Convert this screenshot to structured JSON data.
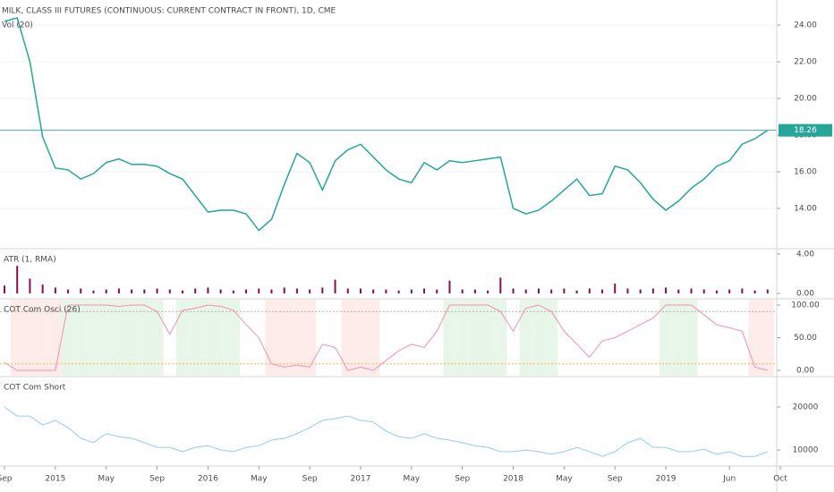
{
  "chart_data": [
    {
      "type": "line",
      "title": "MILK, CLASS III FUTURES (CONTINUOUS: CURRENT CONTRACT IN FRONT), 1D, CME",
      "subtitle": "Vol (20)",
      "x": [
        "2014-09",
        "2014-10",
        "2014-11",
        "2014-12",
        "2015-01",
        "2015-02",
        "2015-03",
        "2015-04",
        "2015-05",
        "2015-06",
        "2015-07",
        "2015-08",
        "2015-09",
        "2015-10",
        "2015-11",
        "2015-12",
        "2016-01",
        "2016-02",
        "2016-03",
        "2016-04",
        "2016-05",
        "2016-06",
        "2016-07",
        "2016-08",
        "2016-09",
        "2016-10",
        "2016-11",
        "2016-12",
        "2017-01",
        "2017-02",
        "2017-03",
        "2017-04",
        "2017-05",
        "2017-06",
        "2017-07",
        "2017-08",
        "2017-09",
        "2017-10",
        "2017-11",
        "2017-12",
        "2018-01",
        "2018-02",
        "2018-03",
        "2018-04",
        "2018-05",
        "2018-06",
        "2018-07",
        "2018-08",
        "2018-09",
        "2018-10",
        "2018-11",
        "2018-12",
        "2019-01",
        "2019-02",
        "2019-03",
        "2019-04",
        "2019-05",
        "2019-06",
        "2019-07",
        "2019-08",
        "2019-09"
      ],
      "xlim": [
        "2014-09",
        "2019-10"
      ],
      "xticks": [
        {
          "value": "2014-09",
          "label": "Sep"
        },
        {
          "value": "2015-01",
          "label": "2015"
        },
        {
          "value": "2015-05",
          "label": "May"
        },
        {
          "value": "2015-09",
          "label": "Sep"
        },
        {
          "value": "2016-01",
          "label": "2016"
        },
        {
          "value": "2016-05",
          "label": "May"
        },
        {
          "value": "2016-09",
          "label": "Sep"
        },
        {
          "value": "2017-01",
          "label": "2017"
        },
        {
          "value": "2017-05",
          "label": "May"
        },
        {
          "value": "2017-09",
          "label": "Sep"
        },
        {
          "value": "2018-01",
          "label": "2018"
        },
        {
          "value": "2018-05",
          "label": "May"
        },
        {
          "value": "2018-09",
          "label": "Sep"
        },
        {
          "value": "2019-01",
          "label": "2019"
        },
        {
          "value": "2019-06",
          "label": "Jun"
        },
        {
          "value": "2019-10",
          "label": "Oct"
        }
      ],
      "series": [
        {
          "name": "MILK",
          "color": "#26a69a",
          "values": [
            24.2,
            24.4,
            22.0,
            17.9,
            16.2,
            16.1,
            15.6,
            15.9,
            16.5,
            16.7,
            16.4,
            16.4,
            16.3,
            15.9,
            15.6,
            14.7,
            13.8,
            13.9,
            13.9,
            13.7,
            12.8,
            13.4,
            15.3,
            17.0,
            16.5,
            15.0,
            16.6,
            17.2,
            17.5,
            16.8,
            16.1,
            15.6,
            15.4,
            16.5,
            16.1,
            16.6,
            16.5,
            16.6,
            16.7,
            16.8,
            14.0,
            13.7,
            13.9,
            14.4,
            15.0,
            15.6,
            14.7,
            14.8,
            16.3,
            16.1,
            15.4,
            14.5,
            13.9,
            14.4,
            15.1,
            15.6,
            16.3,
            16.6,
            17.5,
            17.8,
            18.26
          ]
        }
      ],
      "ylim": [
        11.85,
        25.37
      ],
      "yticks": [
        {
          "value": 14,
          "label": "14.00"
        },
        {
          "value": 16,
          "label": "16.00"
        },
        {
          "value": 18,
          "label": "18.00"
        },
        {
          "value": 20,
          "label": "20.00"
        },
        {
          "value": 22,
          "label": "22.00"
        },
        {
          "value": 24,
          "label": "24.00"
        }
      ],
      "grid": true
    },
    {
      "type": "bar",
      "title": "ATR (1, RMA)",
      "series": [
        {
          "name": "ATR",
          "color": "#880e4f",
          "values": [
            0.8,
            2.8,
            1.5,
            0.9,
            0.6,
            0.4,
            0.5,
            0.3,
            0.4,
            0.5,
            0.4,
            0.4,
            0.5,
            0.4,
            0.3,
            0.5,
            0.6,
            0.4,
            0.3,
            0.4,
            0.5,
            0.4,
            0.6,
            0.5,
            0.4,
            0.6,
            1.4,
            0.5,
            0.5,
            0.4,
            0.4,
            0.3,
            0.4,
            0.5,
            0.4,
            1.3,
            0.4,
            0.4,
            0.3,
            1.6,
            0.5,
            0.4,
            0.5,
            0.4,
            0.5,
            0.3,
            0.5,
            0.4,
            1.0,
            0.5,
            0.4,
            0.5,
            0.6,
            0.4,
            0.5,
            0.4,
            0.3,
            0.4,
            0.5,
            0.3,
            0.4
          ]
        }
      ],
      "ylim": [
        -0.45,
        4.45
      ],
      "yticks": [
        {
          "value": 0,
          "label": "0.00"
        },
        {
          "value": 4,
          "label": "4.00"
        }
      ]
    },
    {
      "type": "line",
      "title": "COT Com Osci (26)",
      "series": [
        {
          "name": "Osci",
          "color": "#f48fb1",
          "values": [
            12,
            0,
            0,
            0,
            0,
            100,
            100,
            100,
            100,
            98,
            100,
            100,
            90,
            55,
            92,
            95,
            100,
            98,
            92,
            70,
            50,
            10,
            5,
            8,
            5,
            40,
            35,
            0,
            5,
            0,
            15,
            30,
            40,
            35,
            60,
            100,
            100,
            100,
            100,
            90,
            60,
            95,
            100,
            90,
            60,
            40,
            20,
            45,
            50,
            60,
            70,
            80,
            100,
            100,
            100,
            85,
            70,
            65,
            60,
            5,
            0
          ]
        }
      ],
      "ylim": [
        -8.2,
        108.2
      ],
      "yticks": [
        {
          "value": 0,
          "label": "0.00"
        },
        {
          "value": 50,
          "label": "50.00"
        },
        {
          "value": 100,
          "label": "100.00"
        }
      ],
      "levels": [
        90,
        10
      ],
      "level_colors": [
        "#b0b0b0",
        "#ffb74d"
      ],
      "zone_colors": [
        "#e8f5e9",
        "#fdecea"
      ]
    },
    {
      "type": "line",
      "title": "COT Com Short",
      "series": [
        {
          "name": "Short",
          "color": "#90caf9",
          "values": [
            20000,
            17900,
            17900,
            15800,
            16900,
            15200,
            12700,
            11700,
            13800,
            13100,
            12700,
            11700,
            10600,
            10600,
            9600,
            10600,
            11000,
            10000,
            9600,
            10600,
            11000,
            12300,
            12700,
            13800,
            15200,
            16900,
            17300,
            17900,
            16900,
            16500,
            14400,
            13100,
            12700,
            13800,
            12700,
            12300,
            11700,
            11000,
            10600,
            9600,
            9600,
            10000,
            9600,
            9000,
            9600,
            10600,
            9600,
            8500,
            9600,
            11700,
            12700,
            10600,
            10600,
            9600,
            9600,
            10200,
            9000,
            9600,
            8500,
            8500,
            9600
          ]
        }
      ],
      "ylim": [
        6458,
        26875
      ],
      "yticks": [
        10000,
        20000
      ]
    }
  ]
}
